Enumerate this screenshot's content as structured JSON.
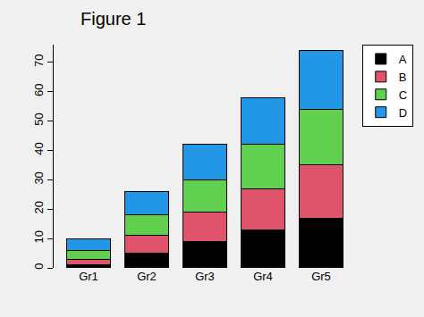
{
  "chart_data": {
    "type": "bar",
    "title": "Figure 1",
    "stacked": true,
    "categories": [
      "Gr1",
      "Gr2",
      "Gr3",
      "Gr4",
      "Gr5"
    ],
    "series": [
      {
        "name": "A",
        "color": "#000000",
        "values": [
          1,
          5,
          9,
          13,
          17
        ]
      },
      {
        "name": "B",
        "color": "#DF536B",
        "values": [
          2,
          6,
          10,
          14,
          18
        ]
      },
      {
        "name": "C",
        "color": "#61D04F",
        "values": [
          3,
          7,
          11,
          15,
          19
        ]
      },
      {
        "name": "D",
        "color": "#2297E6",
        "values": [
          4,
          8,
          12,
          16,
          20
        ]
      }
    ],
    "ylim": [
      0,
      76
    ],
    "yticks": [
      0,
      10,
      20,
      30,
      40,
      50,
      60,
      70
    ],
    "grid": false,
    "legend": "topright"
  }
}
